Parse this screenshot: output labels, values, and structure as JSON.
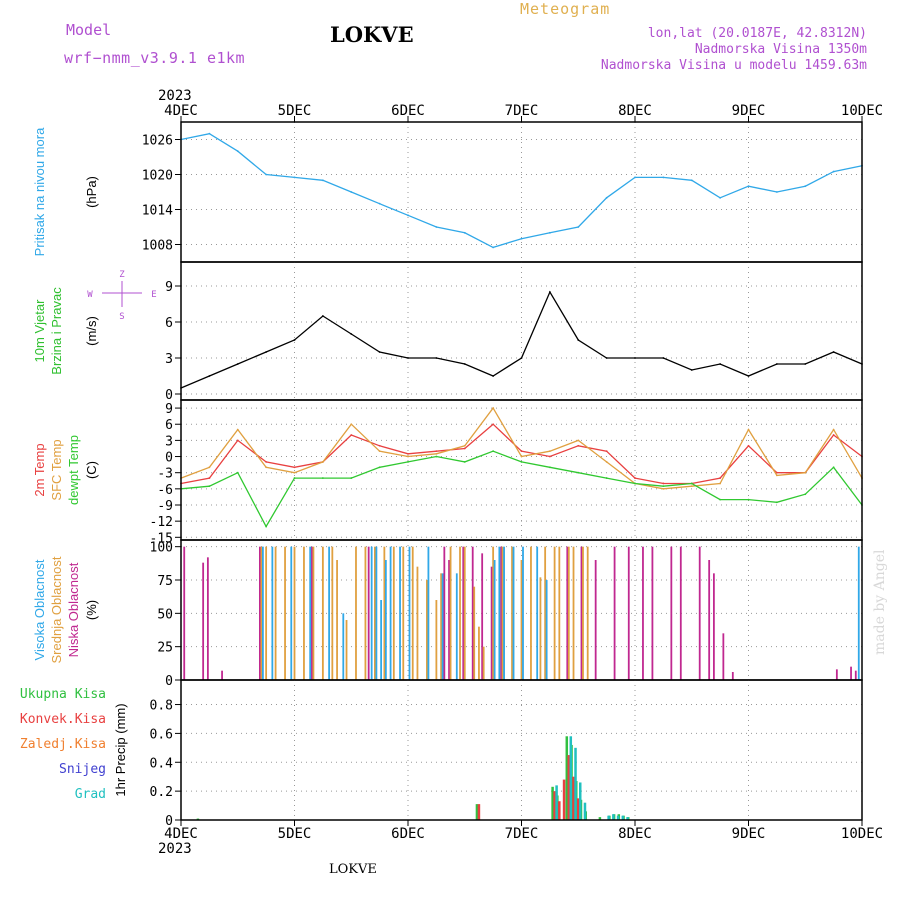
{
  "header": {
    "model_label": "Model",
    "model_name": "wrf−nmm_v3.9.1  e1km",
    "station": "LOKVE",
    "meteogram_label": "Meteogram",
    "coords": "lon,lat (20.0187E, 42.8312N)",
    "elevation": "Nadmorska Visina 1350m",
    "model_elevation": "Nadmorska Visina u modelu 1459.63m",
    "footer_station": "LOKVE",
    "watermark": "made by Angel"
  },
  "colors": {
    "pressure": "#30a8e8",
    "t2m": "#e84040",
    "sfc": "#e0a040",
    "dewpt": "#30c830",
    "high_cloud": "#30a8e8",
    "mid_cloud": "#e0a040",
    "low_cloud": "#c02890",
    "total_precip": "#30c040",
    "conv_precip": "#e84040",
    "frz_precip": "#f08030",
    "snow": "#4040d0",
    "graupel": "#20c0c0",
    "wind_label": "#30c030",
    "axis": "#000000"
  },
  "chart_data": [
    {
      "type": "line",
      "panel": "pressure",
      "ylabel": [
        "Pritisak na nivou mora"
      ],
      "unit": "(hPa)",
      "ylim": [
        1005,
        1029
      ],
      "yticks": [
        1008,
        1014,
        1020,
        1026
      ],
      "x_hours": [
        0,
        6,
        12,
        18,
        24,
        30,
        36,
        42,
        48,
        54,
        60,
        66,
        72,
        78,
        84,
        90,
        96,
        102,
        108,
        114,
        120,
        126,
        132,
        138,
        144
      ],
      "series": [
        {
          "key": "pressure",
          "values": [
            1026,
            1027,
            1024,
            1020,
            1019.5,
            1019,
            1017,
            1015,
            1013,
            1011,
            1010,
            1007.5,
            1009,
            1010,
            1011,
            1016,
            1019.5,
            1019.5,
            1019,
            1016,
            1018,
            1017,
            1018,
            1020.5,
            1021.5
          ]
        }
      ]
    },
    {
      "type": "line",
      "panel": "wind",
      "ylabel": [
        "10m Vjetar",
        "Brzina i Pravac"
      ],
      "unit": "(m/s)",
      "compass": [
        "Z",
        "E",
        "W",
        "S"
      ],
      "ylim": [
        -0.5,
        11
      ],
      "yticks": [
        0,
        3,
        6,
        9
      ],
      "x_hours": [
        0,
        6,
        12,
        18,
        24,
        30,
        36,
        42,
        48,
        54,
        60,
        66,
        72,
        78,
        84,
        90,
        96,
        102,
        108,
        114,
        120,
        126,
        132,
        138,
        144
      ],
      "series": [
        {
          "key": "wind_speed",
          "values": [
            0.5,
            1.5,
            2.5,
            3.5,
            4.5,
            6.5,
            5,
            3.5,
            3,
            3,
            2.5,
            1.5,
            3,
            8.5,
            4.5,
            3,
            3,
            3,
            2,
            2.5,
            1.5,
            2.5,
            2.5,
            3.5,
            2.5
          ]
        }
      ]
    },
    {
      "type": "line",
      "panel": "temperature",
      "ylabel": [
        "2m Temp",
        "SFC Temp",
        "dewpt Temp"
      ],
      "unit": "(C)",
      "ylim": [
        -15.5,
        10.5
      ],
      "yticks": [
        9,
        6,
        3,
        0,
        -3,
        -6,
        -9,
        -12,
        -15
      ],
      "x_hours": [
        0,
        6,
        12,
        18,
        24,
        30,
        36,
        42,
        48,
        54,
        60,
        66,
        72,
        78,
        84,
        90,
        96,
        102,
        108,
        114,
        120,
        126,
        132,
        138,
        144
      ],
      "series": [
        {
          "key": "t2m",
          "values": [
            -5,
            -4,
            3,
            -1,
            -2,
            -1,
            4,
            2,
            0.5,
            1,
            1.5,
            6,
            1,
            0,
            2,
            1,
            -4,
            -5,
            -5,
            -4,
            2,
            -3,
            -3,
            4,
            0
          ]
        },
        {
          "key": "sfc",
          "values": [
            -4,
            -2,
            5,
            -2,
            -3,
            -1,
            6,
            1,
            0,
            0.5,
            2,
            9,
            0,
            1,
            3,
            -1,
            -5,
            -6,
            -5.5,
            -5,
            5,
            -3.5,
            -3,
            5,
            -4
          ]
        },
        {
          "key": "dewpt",
          "values": [
            -6,
            -5.5,
            -3,
            -13,
            -4,
            -4,
            -4,
            -2,
            -1,
            0,
            -1,
            1,
            -1,
            -2,
            -3,
            -4,
            -5,
            -5.5,
            -5,
            -8,
            -8,
            -8.5,
            -7,
            -2,
            -9
          ]
        }
      ]
    },
    {
      "type": "bar",
      "panel": "cloud",
      "ylabel": [
        "Visoka Oblacnost",
        "Srednja Oblacnost",
        "Niska Oblacnost"
      ],
      "unit": "(%)",
      "ylim": [
        0,
        105
      ],
      "yticks": [
        0,
        25,
        50,
        75,
        100
      ],
      "series": [
        {
          "key": "low_cloud",
          "bars": [
            [
              1,
              100
            ],
            [
              5,
              88
            ],
            [
              6,
              92
            ],
            [
              9,
              7
            ],
            [
              17,
              100
            ],
            [
              28,
              100
            ],
            [
              40,
              100
            ],
            [
              56,
              100
            ],
            [
              57,
              90
            ],
            [
              60,
              100
            ],
            [
              62,
              100
            ],
            [
              64,
              95
            ],
            [
              66,
              85
            ],
            [
              68,
              100
            ],
            [
              82,
              100
            ],
            [
              85,
              100
            ],
            [
              88,
              90
            ],
            [
              92,
              100
            ],
            [
              95,
              100
            ],
            [
              98,
              100
            ],
            [
              100,
              100
            ],
            [
              104,
              100
            ],
            [
              106,
              100
            ],
            [
              110,
              100
            ],
            [
              112,
              90
            ],
            [
              113,
              80
            ],
            [
              115,
              35
            ],
            [
              117,
              6
            ],
            [
              139,
              8
            ],
            [
              142,
              10
            ],
            [
              143,
              7
            ]
          ]
        },
        {
          "key": "mid_cloud",
          "bars": [
            [
              17,
              100
            ],
            [
              18,
              100
            ],
            [
              20,
              100
            ],
            [
              22,
              100
            ],
            [
              24,
              100
            ],
            [
              26,
              100
            ],
            [
              28,
              100
            ],
            [
              30,
              100
            ],
            [
              32,
              100
            ],
            [
              33,
              90
            ],
            [
              35,
              45
            ],
            [
              37,
              100
            ],
            [
              39,
              100
            ],
            [
              41,
              100
            ],
            [
              43,
              100
            ],
            [
              45,
              100
            ],
            [
              47,
              100
            ],
            [
              49,
              100
            ],
            [
              50,
              85
            ],
            [
              52,
              75
            ],
            [
              54,
              60
            ],
            [
              55,
              80
            ],
            [
              57,
              100
            ],
            [
              59,
              100
            ],
            [
              60,
              100
            ],
            [
              62,
              70
            ],
            [
              63,
              40
            ],
            [
              64,
              25
            ],
            [
              66,
              100
            ],
            [
              68,
              100
            ],
            [
              70,
              100
            ],
            [
              72,
              90
            ],
            [
              74,
              100
            ],
            [
              76,
              77
            ],
            [
              77,
              100
            ],
            [
              79,
              100
            ],
            [
              80,
              100
            ],
            [
              82,
              100
            ],
            [
              83,
              100
            ],
            [
              85,
              100
            ],
            [
              86,
              100
            ]
          ]
        },
        {
          "key": "high_cloud",
          "bars": [
            [
              17,
              100
            ],
            [
              19,
              100
            ],
            [
              23,
              100
            ],
            [
              27,
              100
            ],
            [
              31,
              100
            ],
            [
              34,
              50
            ],
            [
              40,
              100
            ],
            [
              41,
              100
            ],
            [
              42,
              60
            ],
            [
              43,
              90
            ],
            [
              44,
              100
            ],
            [
              46,
              100
            ],
            [
              48,
              100
            ],
            [
              52,
              100
            ],
            [
              55,
              80
            ],
            [
              58,
              80
            ],
            [
              66,
              90
            ],
            [
              67,
              100
            ],
            [
              68,
              100
            ],
            [
              70,
              100
            ],
            [
              72,
              100
            ],
            [
              75,
              100
            ],
            [
              77,
              75
            ],
            [
              143,
              100
            ]
          ]
        }
      ]
    },
    {
      "type": "bar",
      "panel": "precip",
      "ylabel": [
        "1hr Precip (mm)"
      ],
      "legend": [
        "Ukupna Kisa",
        "Konvek.Kisa",
        "Zaledj.Kisa",
        "Snijeg",
        "Grad"
      ],
      "ylim": [
        0,
        0.97
      ],
      "yticks": [
        0,
        0.2,
        0.4,
        0.6,
        0.8
      ],
      "series": [
        {
          "key": "total_precip",
          "bars": [
            [
              4,
              0.01
            ],
            [
              63,
              0.11
            ],
            [
              79,
              0.23
            ],
            [
              80,
              0.17
            ],
            [
              82,
              0.58
            ],
            [
              83,
              0.52
            ],
            [
              84,
              0.27
            ],
            [
              85,
              0.14
            ],
            [
              86,
              0.06
            ],
            [
              89,
              0.02
            ],
            [
              91,
              0.03
            ],
            [
              92,
              0.04
            ],
            [
              93,
              0.04
            ],
            [
              94,
              0.03
            ],
            [
              95,
              0.02
            ]
          ]
        },
        {
          "key": "conv_precip",
          "bars": [
            [
              63,
              0.11
            ],
            [
              79,
              0.2
            ],
            [
              80,
              0.13
            ],
            [
              81,
              0.28
            ],
            [
              82,
              0.45
            ],
            [
              83,
              0.3
            ],
            [
              84,
              0.15
            ]
          ]
        },
        {
          "key": "graupel",
          "bars": [
            [
              79,
              0.24
            ],
            [
              82,
              0.58
            ],
            [
              83,
              0.5
            ],
            [
              84,
              0.26
            ],
            [
              85,
              0.12
            ],
            [
              90,
              0.03
            ],
            [
              91,
              0.04
            ],
            [
              92,
              0.03
            ],
            [
              93,
              0.03
            ],
            [
              94,
              0.02
            ]
          ]
        }
      ]
    }
  ],
  "xaxis": {
    "year": "2023",
    "ticks": [
      {
        "label": "4DEC",
        "h": 0
      },
      {
        "label": "5DEC",
        "h": 24
      },
      {
        "label": "6DEC",
        "h": 48
      },
      {
        "label": "7DEC",
        "h": 72
      },
      {
        "label": "8DEC",
        "h": 96
      },
      {
        "label": "9DEC",
        "h": 120
      },
      {
        "label": "10DEC",
        "h": 144
      }
    ],
    "range_hours": [
      0,
      144
    ]
  }
}
